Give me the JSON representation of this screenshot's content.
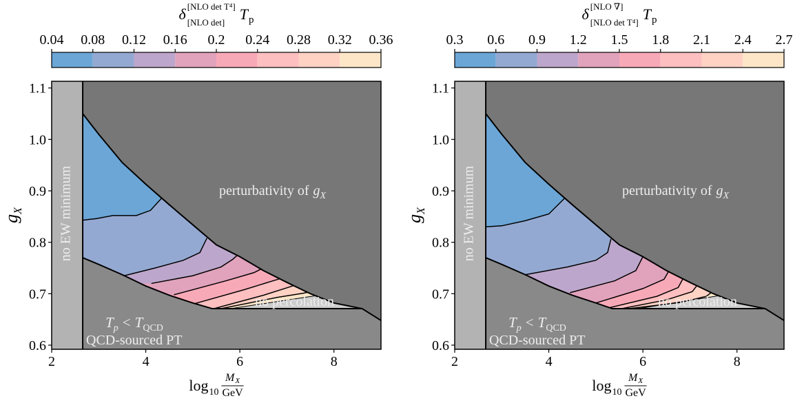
{
  "chart_data": [
    {
      "type": "contour",
      "colorbar_label": {
        "symbol": "δ",
        "superscript": "[NLO det T⁴]",
        "subscript": "[NLO det]",
        "quantity": "T",
        "quantity_subscript": "p"
      },
      "colorbar_lim": [
        0.04,
        0.36
      ],
      "colorbar_ticks": [
        0.04,
        0.08,
        0.12,
        0.16,
        0.2,
        0.24,
        0.28,
        0.32,
        0.36
      ],
      "colors": [
        "#6ba6d6",
        "#94a9d2",
        "#bda6cb",
        "#e1a2bc",
        "#f8a9b7",
        "#fdbfc0",
        "#ffd2c4",
        "#fde6c8"
      ],
      "region_colors": {
        "no_ew_minimum": "#b3b3b3",
        "perturbativity": "#777777",
        "qcd": "#898989",
        "no_percolation": "#cdcdcd"
      },
      "x_label": {
        "text": "log",
        "subscript": "10",
        "numerator": "M",
        "numerator_subscript": "X",
        "denominator": "GeV"
      },
      "y_label": {
        "symbol": "g",
        "subscript": "X"
      },
      "xlim": [
        2,
        9
      ],
      "ylim": [
        0.592,
        1.113
      ],
      "xticks": [
        2,
        4,
        6,
        8
      ],
      "yticks": [
        0.6,
        0.7,
        0.8,
        0.9,
        {
          "value": 1,
          "label": "1.0"
        },
        1.1
      ],
      "no_ew_minimum_x": 2.66,
      "upper_boundary": {
        "x": [
          2.66,
          3.0,
          3.5,
          4.0,
          4.5,
          5.0,
          5.5,
          6.0,
          6.5,
          7.0,
          7.5,
          8.0,
          8.6,
          9.0
        ],
        "y": [
          1.05,
          1.01,
          0.955,
          0.913,
          0.873,
          0.834,
          0.795,
          0.772,
          0.745,
          0.722,
          0.7,
          0.682,
          0.671,
          0.648
        ]
      },
      "lower_boundary": {
        "x": [
          2.66,
          3.0,
          3.5,
          4.0,
          4.5,
          5.0,
          5.41,
          8.6
        ],
        "y": [
          0.77,
          0.757,
          0.737,
          0.715,
          0.697,
          0.682,
          0.671,
          0.671
        ]
      },
      "contours": [
        {
          "x": [
            2.66,
            2.95,
            3.3,
            3.8,
            4.1,
            4.34
          ],
          "y": [
            0.843,
            0.846,
            0.852,
            0.852,
            0.862,
            0.886
          ]
        },
        {
          "x": [
            3.54,
            4.2,
            4.8,
            5.15,
            5.3
          ],
          "y": [
            0.735,
            0.75,
            0.765,
            0.78,
            0.808
          ]
        },
        {
          "x": [
            4.12,
            5.0,
            5.6,
            5.85,
            5.95
          ],
          "y": [
            0.72,
            0.735,
            0.752,
            0.767,
            0.775
          ]
        },
        {
          "x": [
            4.6,
            5.7,
            6.3,
            6.45
          ],
          "y": [
            0.698,
            0.725,
            0.741,
            0.748
          ]
        },
        {
          "x": [
            5.05,
            6.1,
            6.7,
            6.85
          ],
          "y": [
            0.681,
            0.708,
            0.725,
            0.729
          ]
        },
        {
          "x": [
            5.45,
            6.5,
            7.05,
            7.15
          ],
          "y": [
            0.671,
            0.697,
            0.713,
            0.716
          ]
        },
        {
          "x": [
            5.6,
            6.8,
            7.35,
            7.45
          ],
          "y": [
            0.671,
            0.693,
            0.701,
            0.703
          ]
        }
      ],
      "no_percolation_region": {
        "x": [
          5.8,
          8.6,
          8.0,
          7.6
        ],
        "y": [
          0.671,
          0.671,
          0.682,
          0.696
        ]
      },
      "annotations": {
        "no_ew_minimum": "no EW minimum",
        "perturbativity": {
          "text": "perturbativity of",
          "symbol": "g",
          "subscript": "X"
        },
        "no_percolation": "no percolation",
        "qcd_condition": {
          "symbol": "T",
          "subscript": "p",
          "relation": "<",
          "symbol2": "T",
          "subscript2": "QCD"
        },
        "qcd_region": "QCD-sourced PT"
      }
    },
    {
      "type": "contour",
      "colorbar_label": {
        "symbol": "δ",
        "superscript": "[NLO ∇]",
        "subscript": "[NLO det T⁴]",
        "quantity": "T",
        "quantity_subscript": "p"
      },
      "colorbar_lim": [
        0.3,
        2.7
      ],
      "colorbar_ticks": [
        0.3,
        0.6,
        0.9,
        1.2,
        1.5,
        1.8,
        2.1,
        2.4,
        2.7
      ],
      "colors": [
        "#6ba6d6",
        "#94a9d2",
        "#bda6cb",
        "#e1a2bc",
        "#f8a9b7",
        "#fdbfc0",
        "#ffd2c4",
        "#fde6c8"
      ],
      "region_colors": {
        "no_ew_minimum": "#b3b3b3",
        "perturbativity": "#777777",
        "qcd": "#898989",
        "no_percolation": "#cdcdcd"
      },
      "x_label": {
        "text": "log",
        "subscript": "10",
        "numerator": "M",
        "numerator_subscript": "X",
        "denominator": "GeV"
      },
      "y_label": {
        "symbol": "g",
        "subscript": "X"
      },
      "xlim": [
        2,
        9
      ],
      "ylim": [
        0.592,
        1.113
      ],
      "xticks": [
        2,
        4,
        6,
        8
      ],
      "yticks": [
        0.6,
        0.7,
        0.8,
        0.9,
        {
          "value": 1,
          "label": "1.0"
        },
        1.1
      ],
      "no_ew_minimum_x": 2.66,
      "upper_boundary": {
        "x": [
          2.66,
          3.0,
          3.5,
          4.0,
          4.5,
          5.0,
          5.5,
          6.0,
          6.5,
          7.0,
          7.5,
          8.0,
          8.6,
          9.0
        ],
        "y": [
          1.05,
          1.01,
          0.955,
          0.913,
          0.873,
          0.834,
          0.795,
          0.772,
          0.745,
          0.722,
          0.7,
          0.682,
          0.671,
          0.648
        ]
      },
      "lower_boundary": {
        "x": [
          2.66,
          3.0,
          3.5,
          4.0,
          4.5,
          5.0,
          5.35,
          8.6
        ],
        "y": [
          0.77,
          0.757,
          0.737,
          0.715,
          0.697,
          0.682,
          0.671,
          0.671
        ]
      },
      "contours": [
        {
          "x": [
            2.66,
            3.0,
            3.5,
            4.0,
            4.34
          ],
          "y": [
            0.83,
            0.832,
            0.842,
            0.855,
            0.886
          ]
        },
        {
          "x": [
            3.5,
            4.4,
            5.0,
            5.25,
            5.32
          ],
          "y": [
            0.737,
            0.752,
            0.765,
            0.78,
            0.806
          ]
        },
        {
          "x": [
            4.45,
            5.4,
            5.85,
            6.0
          ],
          "y": [
            0.702,
            0.725,
            0.745,
            0.772
          ]
        },
        {
          "x": [
            5.0,
            6.0,
            6.45,
            6.55
          ],
          "y": [
            0.682,
            0.71,
            0.728,
            0.744
          ]
        },
        {
          "x": [
            5.3,
            6.3,
            6.75,
            6.85
          ],
          "y": [
            0.673,
            0.695,
            0.712,
            0.729
          ]
        },
        {
          "x": [
            5.55,
            6.5,
            7.05,
            7.15
          ],
          "y": [
            0.671,
            0.688,
            0.704,
            0.716
          ]
        },
        {
          "x": [
            5.7,
            6.8,
            7.35,
            7.45
          ],
          "y": [
            0.671,
            0.683,
            0.695,
            0.702
          ]
        }
      ],
      "no_percolation_region": {
        "x": [
          5.9,
          8.6,
          8.0,
          7.6
        ],
        "y": [
          0.671,
          0.671,
          0.682,
          0.696
        ]
      },
      "annotations": {
        "no_ew_minimum": "no EW minimum",
        "perturbativity": {
          "text": "perturbativity of",
          "symbol": "g",
          "subscript": "X"
        },
        "no_percolation": "no percolation",
        "qcd_condition": {
          "symbol": "T",
          "subscript": "p",
          "relation": "<",
          "symbol2": "T",
          "subscript2": "QCD"
        },
        "qcd_region": "QCD-sourced PT"
      }
    }
  ]
}
